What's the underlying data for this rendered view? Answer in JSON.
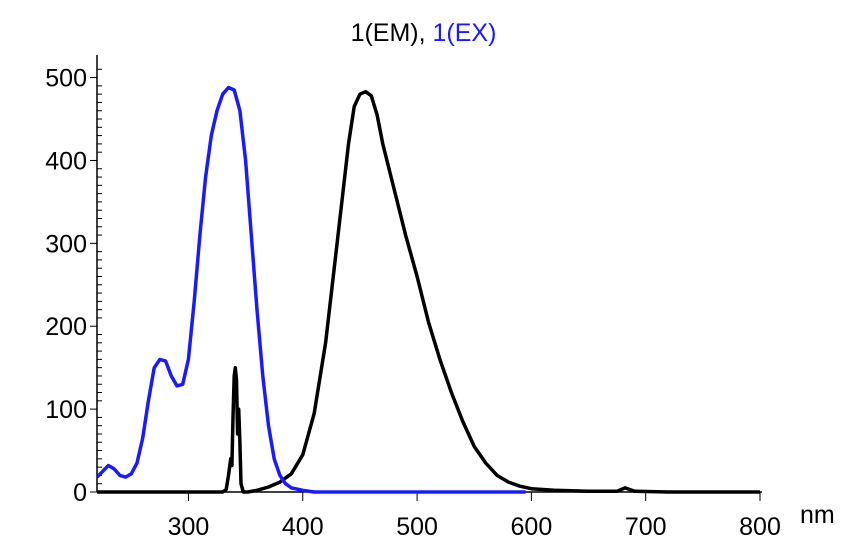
{
  "chart_data": {
    "type": "line",
    "title_parts": [
      {
        "text": "1(EM), ",
        "color": "#000000"
      },
      {
        "text": "1(EX)",
        "color": "#1a1aff"
      }
    ],
    "xunit": "nm",
    "xlim": [
      220,
      800
    ],
    "ylim": [
      0,
      520
    ],
    "xticks": [
      300,
      400,
      500,
      600,
      700,
      800
    ],
    "yticks": [
      0,
      100,
      200,
      300,
      400,
      500
    ],
    "series": [
      {
        "name": "1(EM)",
        "color": "#000000",
        "points": [
          [
            220,
            0
          ],
          [
            330,
            0
          ],
          [
            333,
            3
          ],
          [
            335,
            20
          ],
          [
            337,
            40
          ],
          [
            338,
            32
          ],
          [
            339,
            90
          ],
          [
            340,
            140
          ],
          [
            341,
            150
          ],
          [
            342,
            135
          ],
          [
            343,
            70
          ],
          [
            344,
            100
          ],
          [
            345,
            60
          ],
          [
            346,
            10
          ],
          [
            348,
            0
          ],
          [
            352,
            0
          ],
          [
            360,
            2
          ],
          [
            370,
            6
          ],
          [
            380,
            12
          ],
          [
            390,
            22
          ],
          [
            400,
            45
          ],
          [
            410,
            95
          ],
          [
            420,
            180
          ],
          [
            430,
            300
          ],
          [
            440,
            420
          ],
          [
            445,
            465
          ],
          [
            450,
            480
          ],
          [
            455,
            483
          ],
          [
            460,
            478
          ],
          [
            465,
            455
          ],
          [
            470,
            420
          ],
          [
            480,
            365
          ],
          [
            490,
            310
          ],
          [
            500,
            260
          ],
          [
            510,
            205
          ],
          [
            520,
            160
          ],
          [
            530,
            120
          ],
          [
            540,
            85
          ],
          [
            550,
            55
          ],
          [
            560,
            35
          ],
          [
            570,
            20
          ],
          [
            580,
            12
          ],
          [
            590,
            7
          ],
          [
            600,
            4
          ],
          [
            620,
            2
          ],
          [
            650,
            1
          ],
          [
            675,
            1
          ],
          [
            682,
            5
          ],
          [
            690,
            1
          ],
          [
            720,
            0
          ],
          [
            800,
            0
          ]
        ]
      },
      {
        "name": "1(EX)",
        "color": "#1a1aff",
        "points": [
          [
            220,
            18
          ],
          [
            225,
            25
          ],
          [
            230,
            32
          ],
          [
            235,
            28
          ],
          [
            240,
            20
          ],
          [
            245,
            18
          ],
          [
            250,
            22
          ],
          [
            255,
            35
          ],
          [
            260,
            65
          ],
          [
            265,
            110
          ],
          [
            270,
            150
          ],
          [
            275,
            160
          ],
          [
            280,
            158
          ],
          [
            285,
            140
          ],
          [
            290,
            128
          ],
          [
            295,
            130
          ],
          [
            300,
            160
          ],
          [
            305,
            230
          ],
          [
            310,
            310
          ],
          [
            315,
            380
          ],
          [
            320,
            430
          ],
          [
            325,
            460
          ],
          [
            330,
            480
          ],
          [
            335,
            488
          ],
          [
            340,
            485
          ],
          [
            345,
            460
          ],
          [
            350,
            400
          ],
          [
            355,
            310
          ],
          [
            360,
            220
          ],
          [
            365,
            140
          ],
          [
            370,
            80
          ],
          [
            375,
            40
          ],
          [
            380,
            20
          ],
          [
            385,
            10
          ],
          [
            390,
            5
          ],
          [
            400,
            2
          ],
          [
            410,
            0
          ],
          [
            450,
            0
          ],
          [
            500,
            0
          ],
          [
            550,
            0
          ],
          [
            595,
            0
          ]
        ]
      }
    ]
  }
}
